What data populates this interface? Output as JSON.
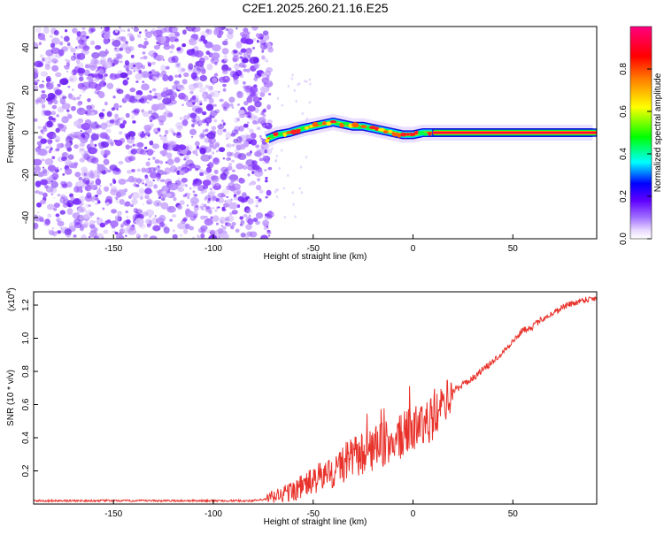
{
  "title": "C2E1.2025.260.21.16.E25",
  "colors": {
    "snr_line": "#e8322b",
    "axis": "#000000",
    "colorbar": [
      "#ffffff",
      "#c8a8ff",
      "#7a00ff",
      "#0000ff",
      "#00ffff",
      "#00ff00",
      "#ffff00",
      "#ff8000",
      "#ff0000",
      "#ff0080"
    ]
  },
  "chart_data": [
    {
      "type": "heatmap",
      "name": "spectrogram",
      "xlabel": "Height of straight line (km)",
      "ylabel": "Frequency (Hz)",
      "xlim": [
        -190,
        92
      ],
      "ylim": [
        -50,
        50
      ],
      "xticks": [
        -150,
        -100,
        -50,
        0,
        50
      ],
      "yticks": [
        -40,
        -20,
        0,
        20,
        40
      ],
      "noise_region_x": [
        -190,
        -73
      ],
      "signal_start_x": -73,
      "signal_track": {
        "x": [
          -73,
          -68,
          -62,
          -55,
          -50,
          -45,
          -40,
          -35,
          -30,
          -25,
          -20,
          -15,
          -10,
          -5,
          0,
          5,
          10,
          15,
          90
        ],
        "y": [
          -3,
          -1,
          0,
          2,
          3,
          4,
          5,
          4,
          3,
          3,
          2,
          1,
          0,
          -1,
          -1,
          0,
          0,
          0,
          0
        ]
      },
      "colorbar": {
        "label": "Normalized spectral amplitude",
        "range": [
          0,
          1
        ],
        "ticks": [
          "0.0",
          "0.2",
          "0.4",
          "0.6",
          "0.8"
        ]
      }
    },
    {
      "type": "line",
      "name": "snr",
      "xlabel": "Height of straight line (km)",
      "ylabel": "SNR (10 * v/v)",
      "multiplier_label": "(x10",
      "multiplier_exp": "4",
      "multiplier_close": ")",
      "xlim": [
        -190,
        92
      ],
      "ylim": [
        0,
        1.28
      ],
      "xticks": [
        -150,
        -100,
        -50,
        0,
        50
      ],
      "yticks": [
        "0.2",
        "0.4",
        "0.6",
        "0.8",
        "1.0",
        "1.2"
      ],
      "trend": {
        "x": [
          -190,
          -80,
          -73,
          -60,
          -50,
          -40,
          -30,
          -20,
          -10,
          0,
          10,
          20,
          30,
          40,
          50,
          55,
          60,
          65,
          70,
          75,
          80,
          85,
          90
        ],
        "y": [
          0.02,
          0.02,
          0.03,
          0.08,
          0.14,
          0.2,
          0.28,
          0.33,
          0.38,
          0.45,
          0.52,
          0.68,
          0.76,
          0.86,
          0.98,
          1.05,
          1.07,
          1.12,
          1.15,
          1.19,
          1.21,
          1.23,
          1.24
        ]
      }
    }
  ]
}
